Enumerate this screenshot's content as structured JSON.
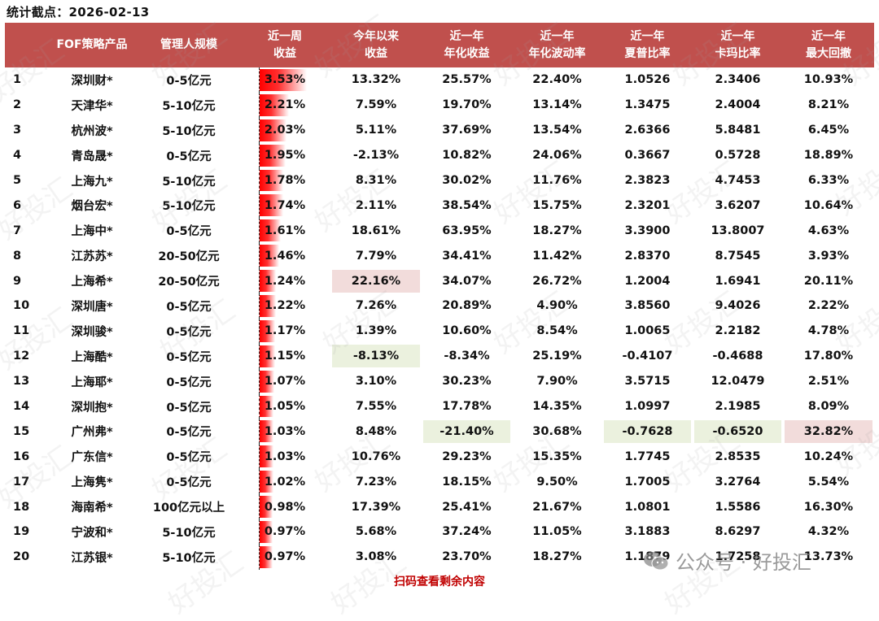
{
  "stat_date_label": "统计截点：2026-02-13",
  "table": {
    "headers": {
      "rank": "",
      "product": "FOF策略产品",
      "scale": "管理人规模",
      "week_line1": "近一周",
      "week_line2": "收益",
      "ytd_line1": "今年以来",
      "ytd_line2": "收益",
      "ann_ret_line1": "近一年",
      "ann_ret_line2": "年化收益",
      "vol_line1": "近一年",
      "vol_line2": "年化波动率",
      "sharpe_line1": "近一年",
      "sharpe_line2": "夏普比率",
      "calmar_line1": "近一年",
      "calmar_line2": "卡玛比率",
      "mdd_line1": "近一年",
      "mdd_line2": "最大回撤"
    },
    "rows": [
      {
        "rank": "1",
        "product": "深圳财*",
        "scale": "0-5亿元",
        "week": "3.53%",
        "ytd": "13.32%",
        "ann_ret": "25.57%",
        "vol": "22.40%",
        "sharpe": "1.0526",
        "calmar": "2.3406",
        "mdd": "10.93%"
      },
      {
        "rank": "2",
        "product": "天津华*",
        "scale": "5-10亿元",
        "week": "2.21%",
        "ytd": "7.59%",
        "ann_ret": "19.70%",
        "vol": "13.14%",
        "sharpe": "1.3475",
        "calmar": "2.4004",
        "mdd": "8.21%"
      },
      {
        "rank": "3",
        "product": "杭州波*",
        "scale": "5-10亿元",
        "week": "2.03%",
        "ytd": "5.11%",
        "ann_ret": "37.69%",
        "vol": "13.54%",
        "sharpe": "2.6366",
        "calmar": "5.8481",
        "mdd": "6.45%"
      },
      {
        "rank": "4",
        "product": "青岛晟*",
        "scale": "0-5亿元",
        "week": "1.95%",
        "ytd": "-2.13%",
        "ann_ret": "10.82%",
        "vol": "24.06%",
        "sharpe": "0.3667",
        "calmar": "0.5728",
        "mdd": "18.89%"
      },
      {
        "rank": "5",
        "product": "上海九*",
        "scale": "5-10亿元",
        "week": "1.78%",
        "ytd": "8.31%",
        "ann_ret": "30.02%",
        "vol": "11.76%",
        "sharpe": "2.3823",
        "calmar": "4.7453",
        "mdd": "6.33%"
      },
      {
        "rank": "6",
        "product": "烟台宏*",
        "scale": "5-10亿元",
        "week": "1.74%",
        "ytd": "2.11%",
        "ann_ret": "38.54%",
        "vol": "15.75%",
        "sharpe": "2.3201",
        "calmar": "3.6207",
        "mdd": "10.64%"
      },
      {
        "rank": "7",
        "product": "上海中*",
        "scale": "0-5亿元",
        "week": "1.61%",
        "ytd": "18.61%",
        "ann_ret": "63.95%",
        "vol": "18.27%",
        "sharpe": "3.3900",
        "calmar": "13.8007",
        "mdd": "4.63%"
      },
      {
        "rank": "8",
        "product": "江苏苏*",
        "scale": "20-50亿元",
        "week": "1.46%",
        "ytd": "7.79%",
        "ann_ret": "34.41%",
        "vol": "11.42%",
        "sharpe": "2.8370",
        "calmar": "8.7545",
        "mdd": "3.93%"
      },
      {
        "rank": "9",
        "product": "上海希*",
        "scale": "20-50亿元",
        "week": "1.24%",
        "ytd": "22.16%",
        "ann_ret": "34.07%",
        "vol": "26.72%",
        "sharpe": "1.2004",
        "calmar": "1.6941",
        "mdd": "20.11%"
      },
      {
        "rank": "10",
        "product": "深圳唐*",
        "scale": "0-5亿元",
        "week": "1.22%",
        "ytd": "7.26%",
        "ann_ret": "20.89%",
        "vol": "4.90%",
        "sharpe": "3.8560",
        "calmar": "9.4026",
        "mdd": "2.22%"
      },
      {
        "rank": "11",
        "product": "深圳骏*",
        "scale": "0-5亿元",
        "week": "1.17%",
        "ytd": "1.39%",
        "ann_ret": "10.60%",
        "vol": "8.54%",
        "sharpe": "1.0065",
        "calmar": "2.2182",
        "mdd": "4.78%"
      },
      {
        "rank": "12",
        "product": "上海酷*",
        "scale": "0-5亿元",
        "week": "1.15%",
        "ytd": "-8.13%",
        "ann_ret": "-8.34%",
        "vol": "25.19%",
        "sharpe": "-0.4107",
        "calmar": "-0.4688",
        "mdd": "17.80%"
      },
      {
        "rank": "13",
        "product": "上海耶*",
        "scale": "0-5亿元",
        "week": "1.07%",
        "ytd": "3.10%",
        "ann_ret": "30.23%",
        "vol": "7.90%",
        "sharpe": "3.5715",
        "calmar": "12.0479",
        "mdd": "2.51%"
      },
      {
        "rank": "14",
        "product": "深圳抱*",
        "scale": "0-5亿元",
        "week": "1.05%",
        "ytd": "7.55%",
        "ann_ret": "17.78%",
        "vol": "14.35%",
        "sharpe": "1.0997",
        "calmar": "2.1985",
        "mdd": "8.09%"
      },
      {
        "rank": "15",
        "product": "广州弗*",
        "scale": "0-5亿元",
        "week": "1.03%",
        "ytd": "8.48%",
        "ann_ret": "-21.40%",
        "vol": "30.68%",
        "sharpe": "-0.7628",
        "calmar": "-0.6520",
        "mdd": "32.82%"
      },
      {
        "rank": "16",
        "product": "广东信*",
        "scale": "0-5亿元",
        "week": "1.03%",
        "ytd": "10.76%",
        "ann_ret": "29.23%",
        "vol": "15.35%",
        "sharpe": "1.7745",
        "calmar": "2.8535",
        "mdd": "10.24%"
      },
      {
        "rank": "17",
        "product": "上海隽*",
        "scale": "0-5亿元",
        "week": "1.02%",
        "ytd": "7.23%",
        "ann_ret": "18.15%",
        "vol": "9.50%",
        "sharpe": "1.7005",
        "calmar": "3.2764",
        "mdd": "5.54%"
      },
      {
        "rank": "18",
        "product": "海南希*",
        "scale": "100亿元以上",
        "week": "0.98%",
        "ytd": "17.39%",
        "ann_ret": "25.41%",
        "vol": "21.67%",
        "sharpe": "1.0801",
        "calmar": "1.5586",
        "mdd": "16.30%"
      },
      {
        "rank": "19",
        "product": "宁波和*",
        "scale": "5-10亿元",
        "week": "0.97%",
        "ytd": "5.68%",
        "ann_ret": "37.24%",
        "vol": "11.05%",
        "sharpe": "3.1883",
        "calmar": "8.6297",
        "mdd": "4.32%"
      },
      {
        "rank": "20",
        "product": "江苏银*",
        "scale": "5-10亿元",
        "week": "0.97%",
        "ytd": "3.08%",
        "ann_ret": "23.70%",
        "vol": "18.27%",
        "sharpe": "1.1879",
        "calmar": "1.7258",
        "mdd": "13.73%"
      }
    ],
    "week_values": [
      3.53,
      2.21,
      2.03,
      1.95,
      1.78,
      1.74,
      1.61,
      1.46,
      1.24,
      1.22,
      1.17,
      1.15,
      1.07,
      1.05,
      1.03,
      1.03,
      1.02,
      0.98,
      0.97,
      0.97
    ],
    "highlights": [
      {
        "row": 8,
        "col": "ytd",
        "type": "pink"
      },
      {
        "row": 11,
        "col": "ytd",
        "type": "green"
      },
      {
        "row": 14,
        "col": "ann_ret",
        "type": "green"
      },
      {
        "row": 14,
        "col": "sharpe",
        "type": "green"
      },
      {
        "row": 14,
        "col": "calmar",
        "type": "green"
      },
      {
        "row": 14,
        "col": "mdd",
        "type": "pink"
      }
    ]
  },
  "footer": {
    "scan_prompt": "扫码查看剩余内容"
  },
  "watermark": {
    "text": "好投汇",
    "account_label": "公众号 · 好投汇"
  },
  "colors": {
    "header_bg": "#c0504d",
    "bar_red": "#ff0000",
    "highlight_pink": "#f2dcdb",
    "highlight_green": "#ebf1de",
    "footer_red": "#c00000"
  }
}
